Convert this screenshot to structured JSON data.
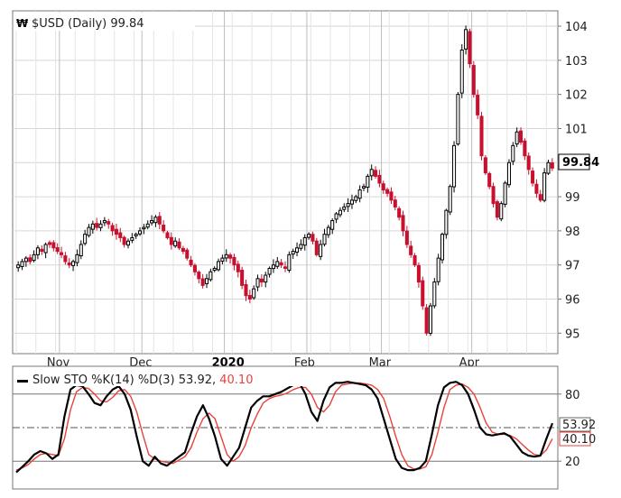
{
  "chart_data": [
    {
      "type": "candlestick",
      "symbol_icon": "w-logo-icon",
      "title": "$USD (Daily) 99.84",
      "last_value_label": "99.84",
      "x_tick_labels": [
        "Nov",
        "Dec",
        "2020",
        "Feb",
        "Mar",
        "Apr"
      ],
      "y_tick_labels": [
        "104",
        "103",
        "102",
        "101",
        "100",
        "99",
        "98",
        "97",
        "96",
        "95"
      ],
      "ylim": [
        94.4,
        104.45
      ],
      "grid": true,
      "colors": {
        "up": "#000000",
        "down": "#c8102e",
        "grid": "#d6d6d6",
        "border": "#777777"
      },
      "series_close": [
        97.0,
        97.1,
        97.2,
        97.1,
        97.3,
        97.5,
        97.4,
        97.6,
        97.6,
        97.5,
        97.4,
        97.3,
        97.1,
        97.0,
        97.1,
        97.3,
        97.6,
        97.9,
        98.1,
        98.2,
        98.1,
        98.2,
        98.3,
        98.2,
        98.0,
        97.9,
        97.8,
        97.6,
        97.7,
        97.8,
        97.9,
        98.0,
        98.1,
        98.2,
        98.3,
        98.4,
        98.2,
        98.0,
        97.8,
        97.6,
        97.7,
        97.5,
        97.4,
        97.2,
        97.0,
        96.8,
        96.6,
        96.4,
        96.6,
        96.8,
        96.9,
        97.1,
        97.2,
        97.3,
        97.2,
        97.0,
        96.8,
        96.4,
        96.1,
        96.0,
        96.3,
        96.6,
        96.5,
        96.7,
        96.9,
        97.0,
        97.1,
        97.0,
        96.9,
        97.3,
        97.4,
        97.5,
        97.6,
        97.8,
        97.9,
        97.7,
        97.3,
        97.6,
        97.9,
        98.1,
        98.3,
        98.5,
        98.6,
        98.7,
        98.8,
        98.9,
        99.0,
        99.2,
        99.3,
        99.6,
        99.8,
        99.6,
        99.4,
        99.2,
        99.1,
        98.9,
        98.7,
        98.4,
        98.0,
        97.6,
        97.3,
        97.0,
        96.5,
        95.8,
        95.0,
        95.8,
        96.5,
        97.2,
        97.9,
        98.6,
        99.3,
        100.5,
        102.0,
        103.3,
        103.9,
        102.9,
        102.0,
        101.4,
        100.2,
        99.7,
        99.3,
        98.8,
        98.4,
        98.8,
        99.4,
        100.0,
        100.5,
        100.9,
        100.6,
        100.2,
        99.8,
        99.4,
        99.1,
        98.9,
        99.7,
        100.0,
        99.84
      ]
    },
    {
      "type": "line",
      "title": "Slow STO %K(14) %D(3)",
      "k_value": "53.92",
      "d_value": "40.10",
      "y_tick_labels": [
        "80",
        "20"
      ],
      "reference_lines": [
        80,
        50,
        20
      ],
      "ylim": [
        0,
        100
      ],
      "series": [
        {
          "name": "%K(14)",
          "color": "#000000",
          "values": [
            10,
            15,
            20,
            26,
            29,
            27,
            22,
            26,
            60,
            84,
            88,
            87,
            80,
            72,
            70,
            78,
            84,
            87,
            80,
            66,
            42,
            20,
            16,
            24,
            18,
            16,
            20,
            24,
            28,
            45,
            60,
            70,
            58,
            42,
            22,
            16,
            24,
            32,
            50,
            68,
            74,
            78,
            78,
            80,
            82,
            85,
            88,
            90,
            80,
            64,
            56,
            74,
            86,
            90,
            90,
            91,
            90,
            89,
            88,
            84,
            76,
            58,
            40,
            22,
            14,
            12,
            12,
            14,
            20,
            44,
            70,
            86,
            90,
            91,
            88,
            80,
            66,
            50,
            44,
            43,
            44,
            45,
            42,
            35,
            28,
            25,
            24,
            25,
            40,
            53.92
          ]
        },
        {
          "name": "%D(3)",
          "color": "#e8413a",
          "values": [
            12,
            14,
            17,
            22,
            26,
            27,
            26,
            25,
            40,
            66,
            82,
            86,
            85,
            80,
            74,
            73,
            77,
            83,
            84,
            78,
            64,
            44,
            26,
            22,
            20,
            19,
            18,
            21,
            24,
            32,
            46,
            58,
            63,
            58,
            42,
            26,
            20,
            24,
            34,
            50,
            62,
            72,
            76,
            78,
            79,
            81,
            84,
            86,
            86,
            80,
            68,
            64,
            70,
            82,
            88,
            89,
            90,
            90,
            89,
            88,
            84,
            76,
            60,
            42,
            26,
            16,
            13,
            13,
            15,
            26,
            46,
            68,
            84,
            88,
            89,
            86,
            80,
            68,
            54,
            46,
            44,
            44,
            43,
            40,
            35,
            30,
            26,
            25,
            30,
            40.1
          ]
        }
      ]
    }
  ]
}
